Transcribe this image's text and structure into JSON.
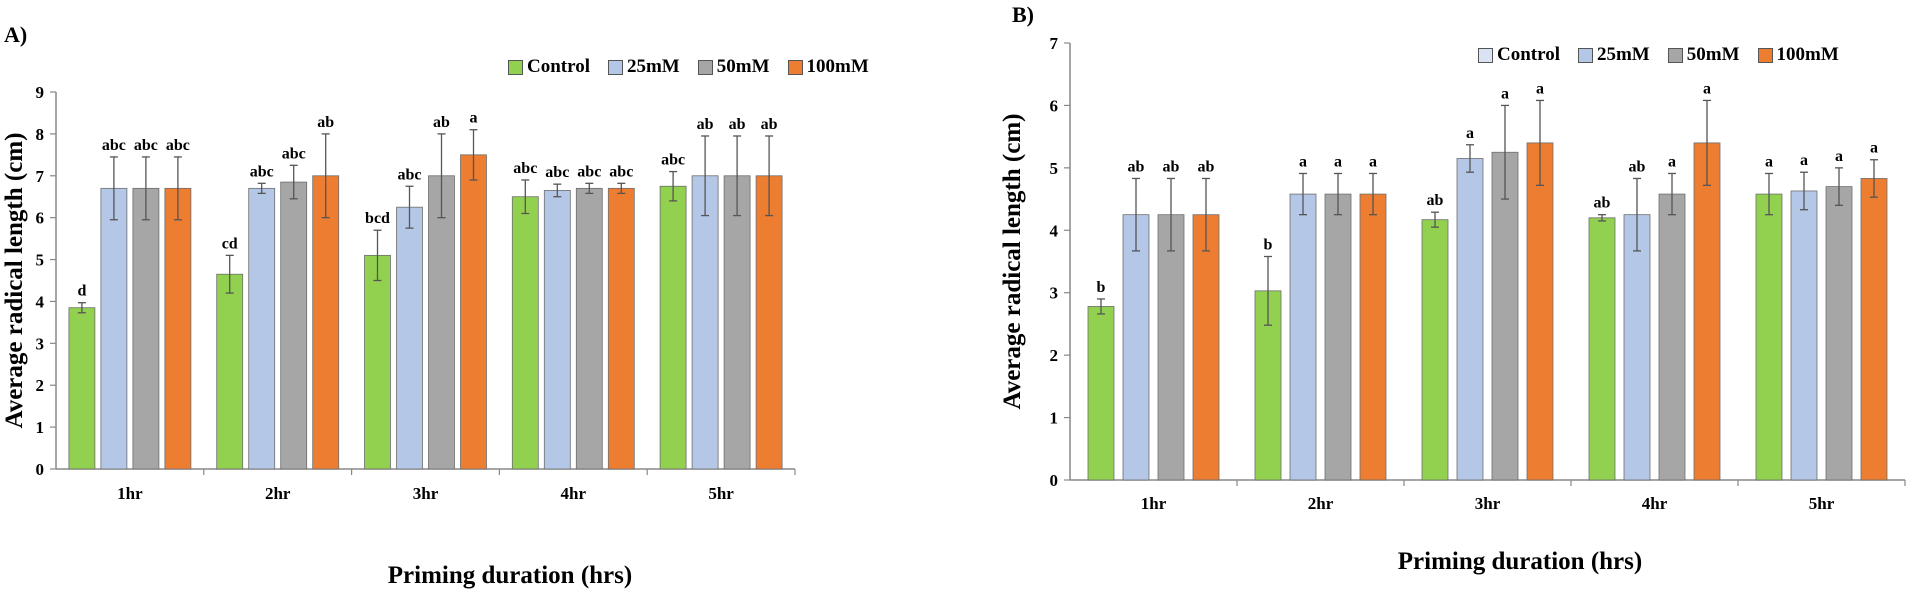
{
  "chart_data": [
    {
      "type": "bar",
      "panel_label": "A)",
      "xlabel": "Priming duration (hrs)",
      "ylabel": "Average radical length (cm)",
      "ylim": [
        0,
        9
      ],
      "yticks": [
        0,
        1,
        2,
        3,
        4,
        5,
        6,
        7,
        8,
        9
      ],
      "categories": [
        "1hr",
        "2hr",
        "3hr",
        "4hr",
        "5hr"
      ],
      "legend_position": "top-right",
      "series": [
        {
          "name": "Control",
          "color": "#92d050",
          "values": [
            3.85,
            4.65,
            5.1,
            6.5,
            6.75
          ],
          "errors": [
            0.12,
            0.45,
            0.6,
            0.4,
            0.35
          ],
          "sig": [
            "d",
            "cd",
            "bcd",
            "abc",
            "abc"
          ]
        },
        {
          "name": "25mM",
          "color": "#b4c7e7",
          "values": [
            6.7,
            6.7,
            6.25,
            6.65,
            7.0
          ],
          "errors": [
            0.75,
            0.12,
            0.5,
            0.15,
            0.95
          ],
          "sig": [
            "abc",
            "abc",
            "abc",
            "abc",
            "ab"
          ]
        },
        {
          "name": "50mM",
          "color": "#a6a6a6",
          "values": [
            6.7,
            6.85,
            7.0,
            6.7,
            7.0
          ],
          "errors": [
            0.75,
            0.4,
            1.0,
            0.12,
            0.95
          ],
          "sig": [
            "abc",
            "abc",
            "ab",
            "abc",
            "ab"
          ]
        },
        {
          "name": "100mM",
          "color": "#ed7d31",
          "values": [
            6.7,
            7.0,
            7.5,
            6.7,
            7.0
          ],
          "errors": [
            0.75,
            1.0,
            0.6,
            0.12,
            0.95
          ],
          "sig": [
            "abc",
            "ab",
            "a",
            "abc",
            "ab"
          ]
        }
      ]
    },
    {
      "type": "bar",
      "panel_label": "B)",
      "xlabel": "Priming duration (hrs)",
      "ylabel": "Average radical length (cm)",
      "ylim": [
        0,
        7
      ],
      "yticks": [
        0,
        1,
        2,
        3,
        4,
        5,
        6,
        7
      ],
      "categories": [
        "1hr",
        "2hr",
        "3hr",
        "4hr",
        "5hr"
      ],
      "legend_position": "top-right",
      "legend_control_color": "#dae3f3",
      "series": [
        {
          "name": "Control",
          "color": "#92d050",
          "values": [
            2.78,
            3.03,
            4.17,
            4.2,
            4.58
          ],
          "errors": [
            0.12,
            0.55,
            0.12,
            0.05,
            0.33
          ],
          "sig": [
            "b",
            "b",
            "ab",
            "ab",
            "a"
          ]
        },
        {
          "name": "25mM",
          "color": "#b4c7e7",
          "values": [
            4.25,
            4.58,
            5.15,
            4.25,
            4.63
          ],
          "errors": [
            0.58,
            0.33,
            0.22,
            0.58,
            0.3
          ],
          "sig": [
            "ab",
            "a",
            "a",
            "ab",
            "a"
          ]
        },
        {
          "name": "50mM",
          "color": "#a6a6a6",
          "values": [
            4.25,
            4.58,
            5.25,
            4.58,
            4.7
          ],
          "errors": [
            0.58,
            0.33,
            0.75,
            0.33,
            0.3
          ],
          "sig": [
            "ab",
            "a",
            "a",
            "a",
            "a"
          ]
        },
        {
          "name": "100mM",
          "color": "#ed7d31",
          "values": [
            4.25,
            4.58,
            5.4,
            5.4,
            4.83
          ],
          "errors": [
            0.58,
            0.33,
            0.68,
            0.68,
            0.3
          ],
          "sig": [
            "ab",
            "a",
            "a",
            "a",
            "a"
          ]
        }
      ]
    }
  ]
}
